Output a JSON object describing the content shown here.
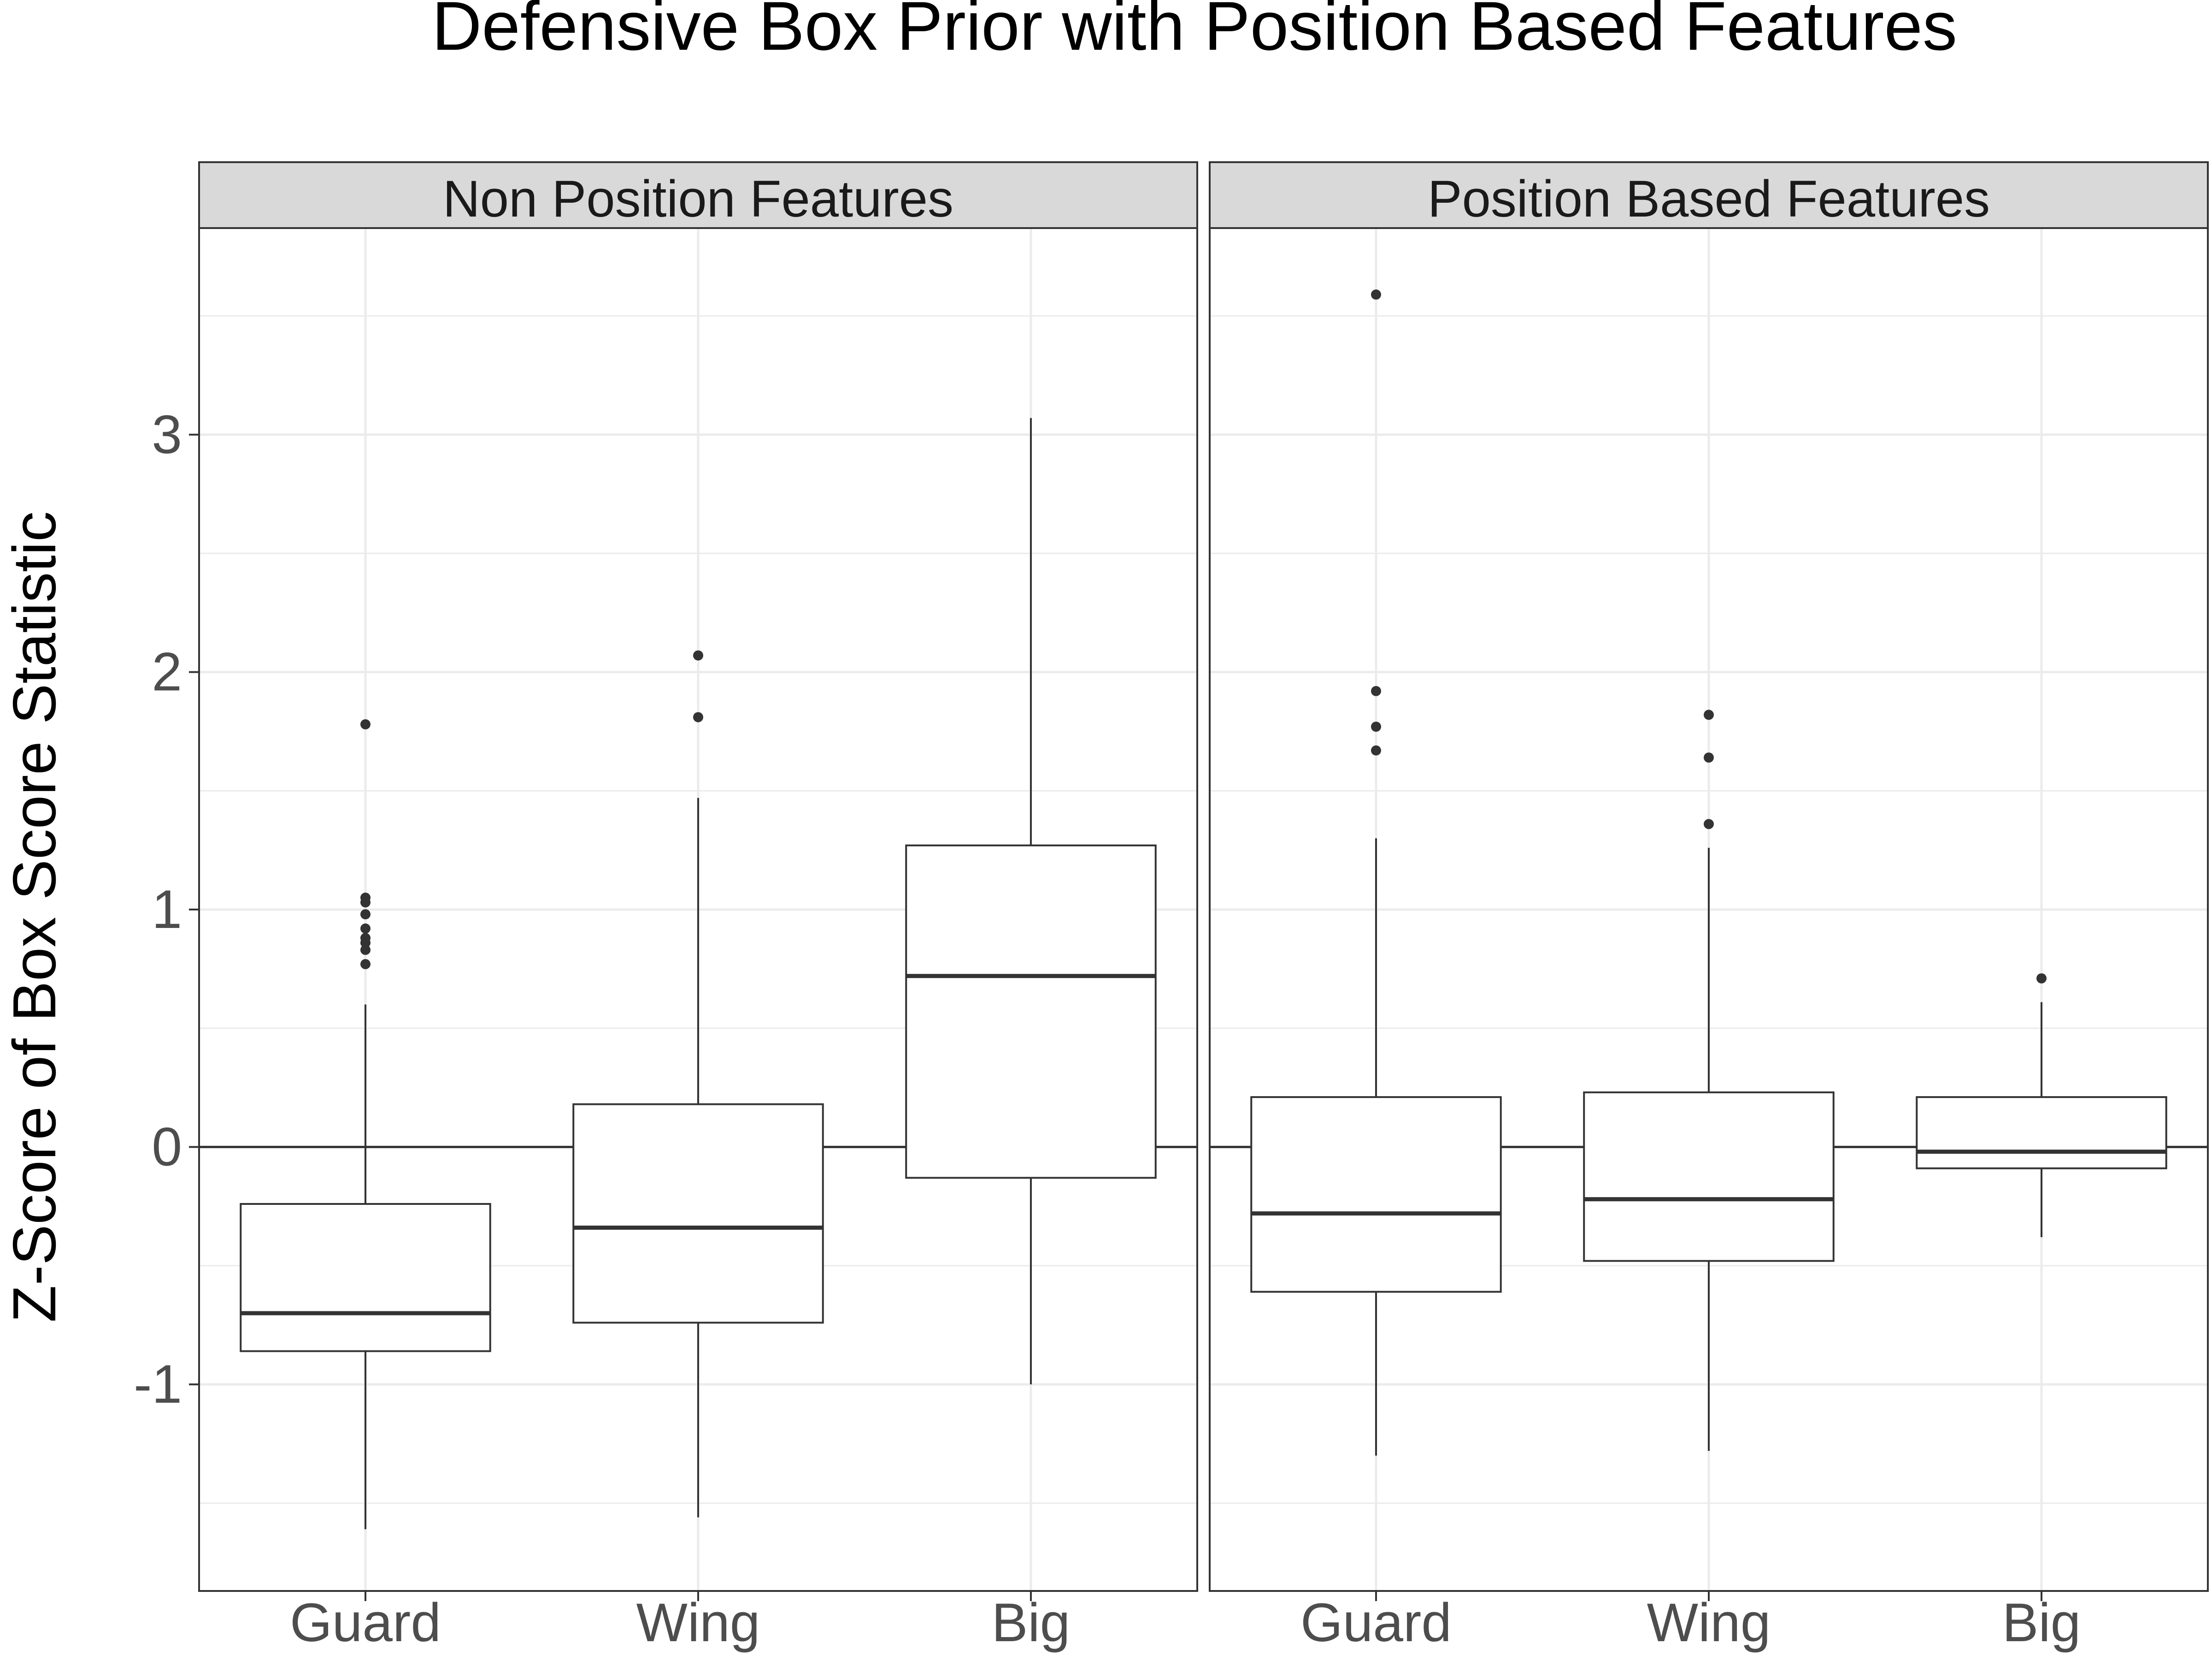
{
  "chart_data": {
    "type": "box",
    "title": "Defensive Box Prior with Position Based Features",
    "xlabel": "",
    "ylabel": "Z-Score of Box Score Statistic",
    "categories": [
      "Guard",
      "Wing",
      "Big"
    ],
    "ylim": [
      -1.87,
      3.87
    ],
    "yticks": [
      -1,
      0,
      1,
      2,
      3
    ],
    "ytick_labels": [
      "-1",
      "0",
      "1",
      "2",
      "3"
    ],
    "grid": true,
    "reference_line": 0,
    "colors": {
      "box_stroke": "#333333",
      "strip_fill": "#d9d9d9",
      "grid": "#ebebeb",
      "panel_border": "#333333",
      "point": "#333333"
    },
    "panels": [
      {
        "label": "Non Position Features",
        "boxes": [
          {
            "category": "Guard",
            "whisker_low": -1.61,
            "q1": -0.86,
            "median": -0.7,
            "q3": -0.24,
            "whisker_high": 0.6,
            "outliers": [
              0.77,
              0.83,
              0.86,
              0.88,
              0.92,
              0.98,
              1.03,
              1.05,
              1.78
            ]
          },
          {
            "category": "Wing",
            "whisker_low": -1.56,
            "q1": -0.74,
            "median": -0.34,
            "q3": 0.18,
            "whisker_high": 1.47,
            "outliers": [
              1.81,
              2.07
            ]
          },
          {
            "category": "Big",
            "whisker_low": -1.0,
            "q1": -0.13,
            "median": 0.72,
            "q3": 1.27,
            "whisker_high": 3.07,
            "outliers": []
          }
        ]
      },
      {
        "label": "Position Based Features",
        "boxes": [
          {
            "category": "Guard",
            "whisker_low": -1.3,
            "q1": -0.61,
            "median": -0.28,
            "q3": 0.21,
            "whisker_high": 1.3,
            "outliers": [
              1.67,
              1.77,
              1.92,
              3.59
            ]
          },
          {
            "category": "Wing",
            "whisker_low": -1.28,
            "q1": -0.48,
            "median": -0.22,
            "q3": 0.23,
            "whisker_high": 1.26,
            "outliers": [
              1.36,
              1.64,
              1.82
            ]
          },
          {
            "category": "Big",
            "whisker_low": -0.38,
            "q1": -0.09,
            "median": -0.02,
            "q3": 0.21,
            "whisker_high": 0.61,
            "outliers": [
              0.71
            ]
          }
        ]
      }
    ]
  }
}
